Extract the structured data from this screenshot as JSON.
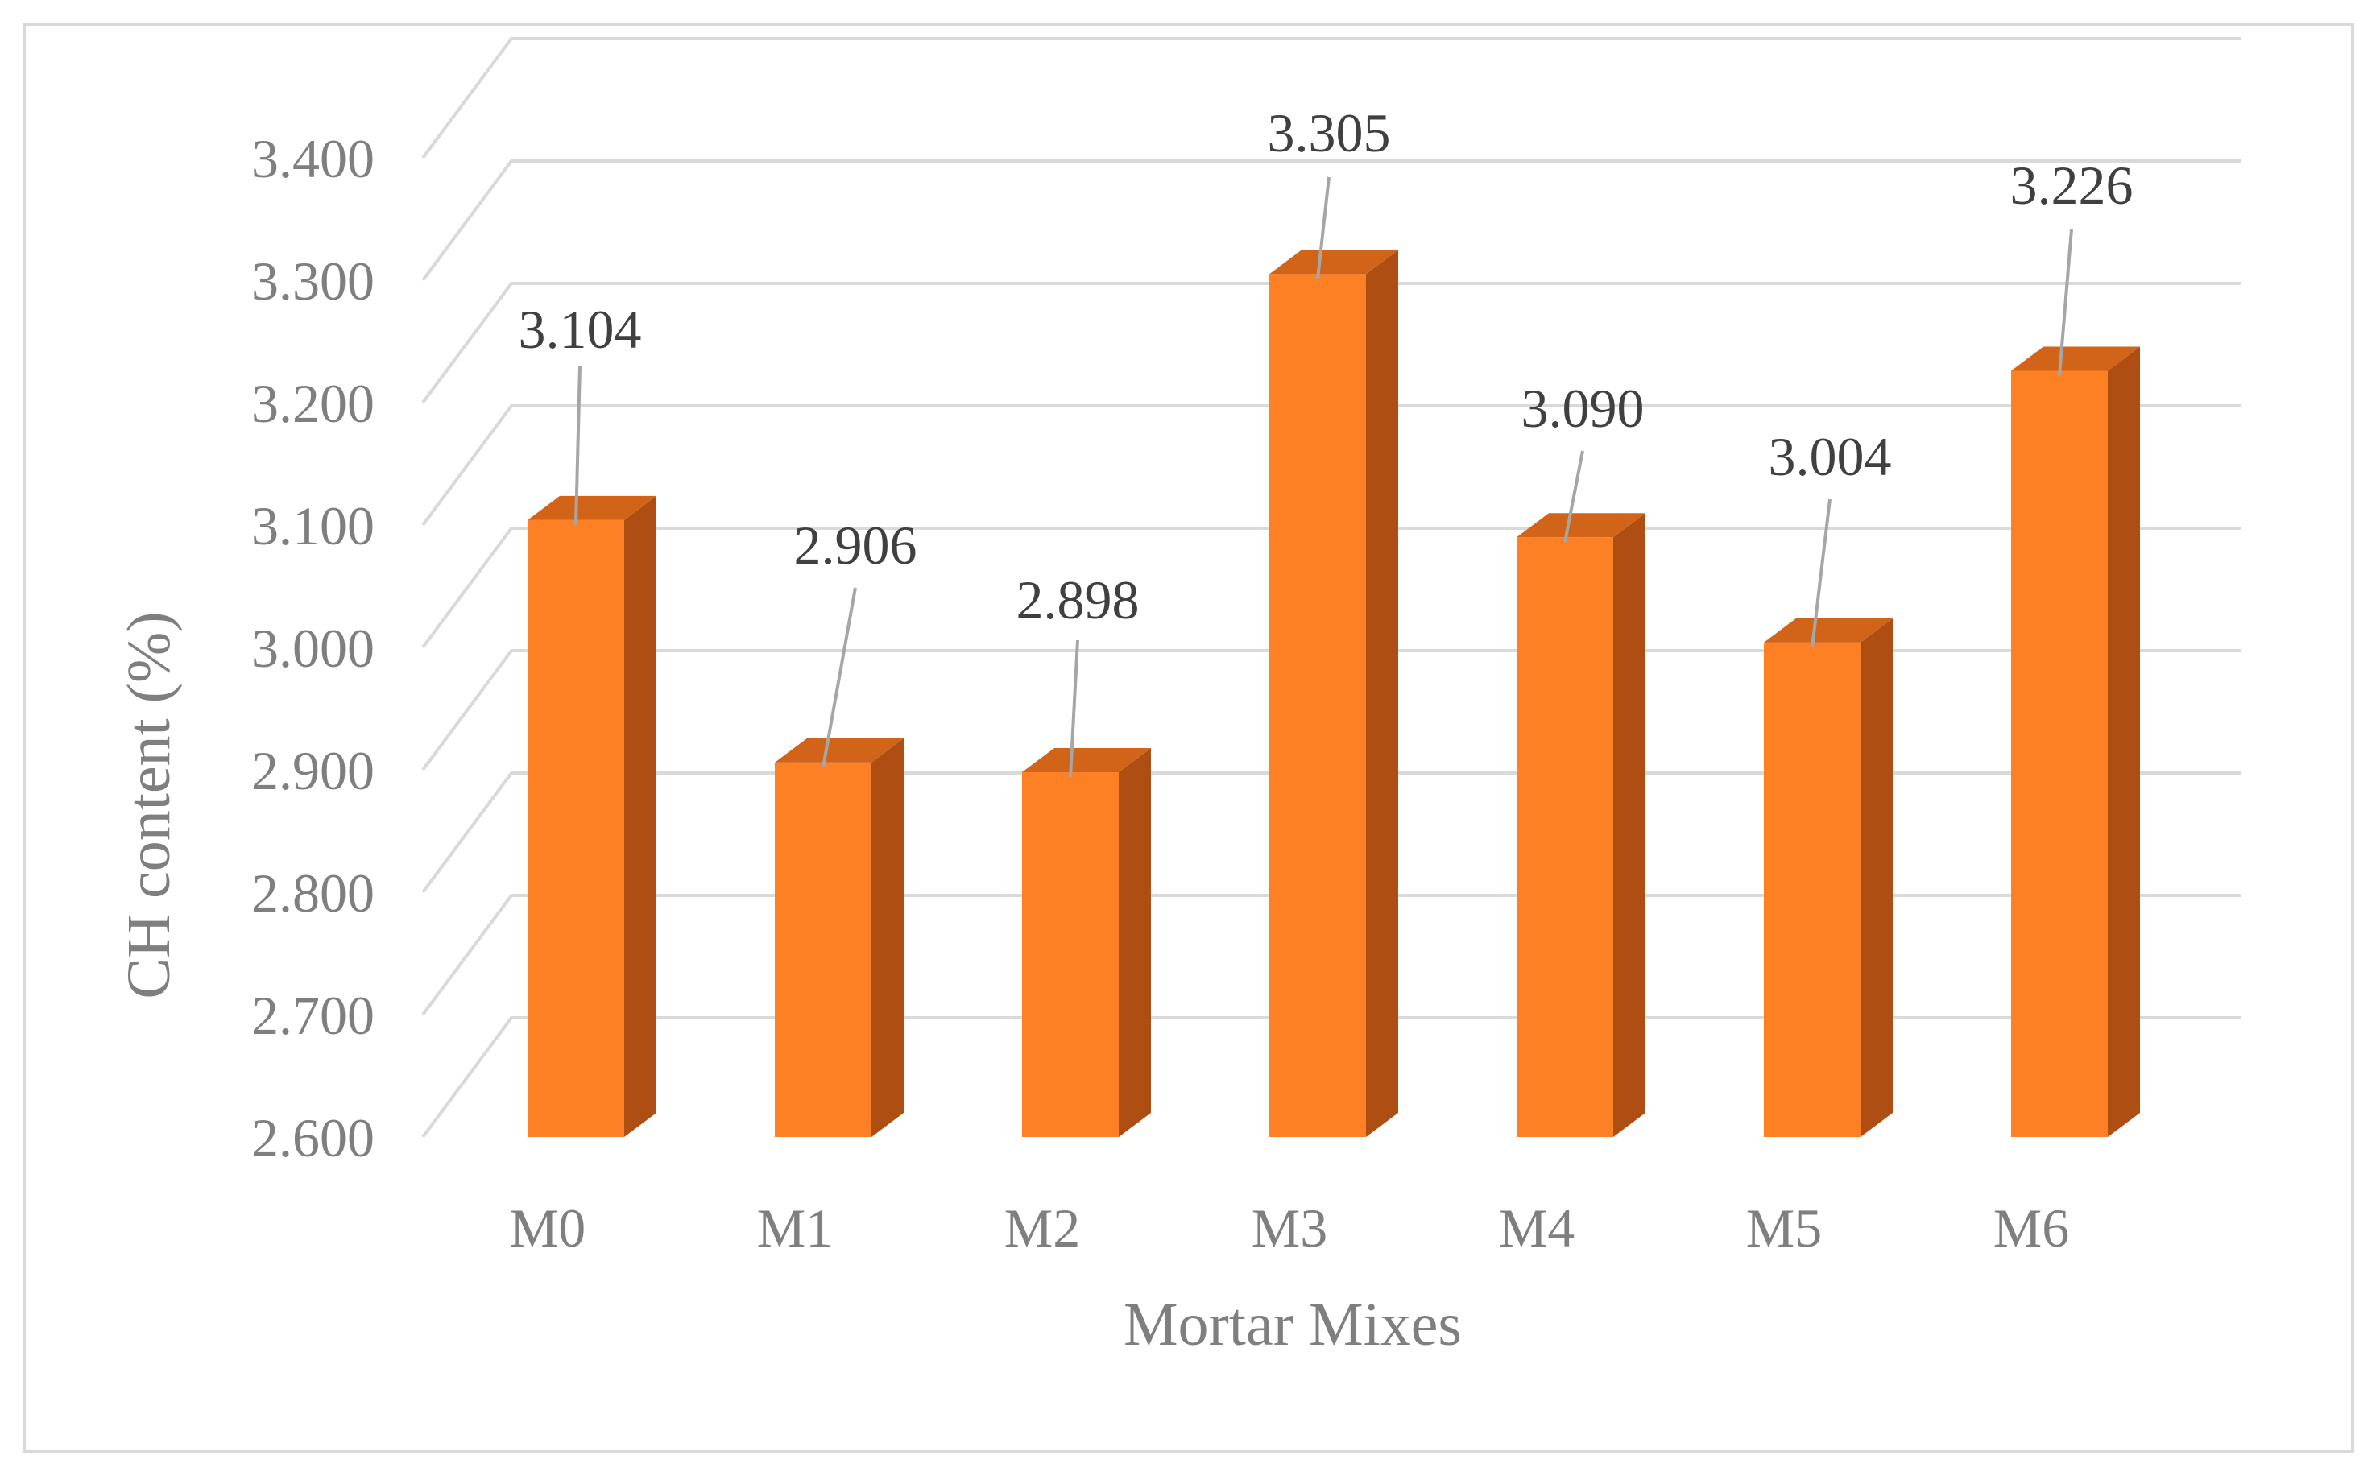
{
  "chart_data": {
    "type": "bar",
    "style": "3d-column",
    "categories": [
      "M0",
      "M1",
      "M2",
      "M3",
      "M4",
      "M5",
      "M6"
    ],
    "values": [
      3.104,
      2.906,
      2.898,
      3.305,
      3.09,
      3.004,
      3.226
    ],
    "data_labels": [
      "3.104",
      "2.906",
      "2.898",
      "3.305",
      "3.090",
      "3.004",
      "3.226"
    ],
    "title": "",
    "xlabel": "Mortar Mixes",
    "ylabel": "CH content  (%)",
    "ylim": [
      2.6,
      3.4
    ],
    "yticks": [
      2.6,
      2.7,
      2.8,
      2.9,
      3.0,
      3.1,
      3.2,
      3.3,
      3.4
    ],
    "ytick_labels": [
      "2.600",
      "2.700",
      "2.800",
      "2.900",
      "3.000",
      "3.100",
      "3.200",
      "3.300",
      "3.400"
    ],
    "grid": true,
    "legend": "none",
    "colors": {
      "bar_front": "#fd8025",
      "bar_side": "#ae4e12",
      "bar_top": "#d2641a",
      "grid": "#d9d9d9",
      "leader": "#a6a6a6"
    }
  }
}
